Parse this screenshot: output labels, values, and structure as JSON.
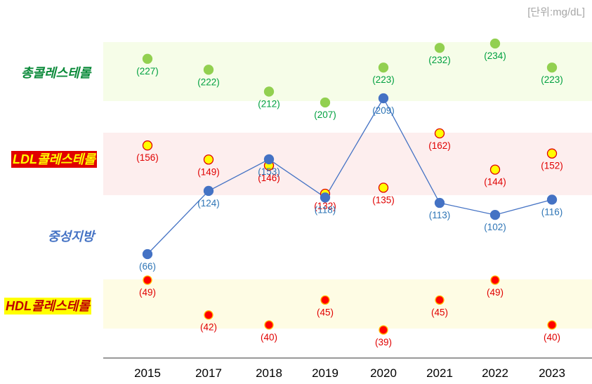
{
  "unit_label": "[단위:mg/dL]",
  "row_labels": {
    "total": "총콜레스테롤",
    "ldl": "LDL콜레스테롤",
    "tg": "중성지방",
    "hdl": "HDL콜레스테롤"
  },
  "colors": {
    "total_marker": "#92d050",
    "total_text": "#00a040",
    "ldl_marker": "#ffff00",
    "ldl_marker_stroke": "#e00000",
    "ldl_text": "#e00000",
    "tg_line": "#4472c4",
    "tg_text": "#2e75b6",
    "hdl_marker": "#ff0000",
    "hdl_marker_stroke": "#ffc000",
    "hdl_text": "#e00000",
    "band_total": "#f6fde8",
    "band_ldl": "#fdeeee",
    "band_hdl": "#fefce4"
  },
  "chart_data": {
    "type": "line",
    "categories": [
      "2015",
      "2017",
      "2018",
      "2019",
      "2020",
      "2021",
      "2022",
      "2023"
    ],
    "series": [
      {
        "name": "총콜레스테롤",
        "key": "total",
        "values": [
          227,
          222,
          212,
          207,
          223,
          232,
          234,
          223
        ],
        "labels": [
          "(227)",
          "(222)",
          "(212)",
          "(207)",
          "(223)",
          "(232)",
          "(234)",
          "(223)"
        ]
      },
      {
        "name": "LDL콜레스테롤",
        "key": "ldl",
        "values": [
          156,
          149,
          146,
          132,
          135,
          162,
          144,
          152
        ],
        "labels": [
          "(156)",
          "(149)",
          "(146)",
          "(132)",
          "(135)",
          "(162)",
          "(144)",
          "(152)"
        ]
      },
      {
        "name": "중성지방",
        "key": "tg",
        "values": [
          66,
          124,
          153,
          118,
          209,
          113,
          102,
          116
        ],
        "labels": [
          "(66)",
          "(124)",
          "(153)",
          "(118)",
          "(209)",
          "(113)",
          "(102)",
          "(116)"
        ]
      },
      {
        "name": "HDL콜레스테롤",
        "key": "hdl",
        "values": [
          49,
          42,
          40,
          45,
          39,
          45,
          49,
          40
        ],
        "labels": [
          "(49)",
          "(42)",
          "(40)",
          "(45)",
          "(39)",
          "(45)",
          "(49)",
          "(40)"
        ]
      }
    ],
    "xlabel": "",
    "ylabel": ""
  }
}
